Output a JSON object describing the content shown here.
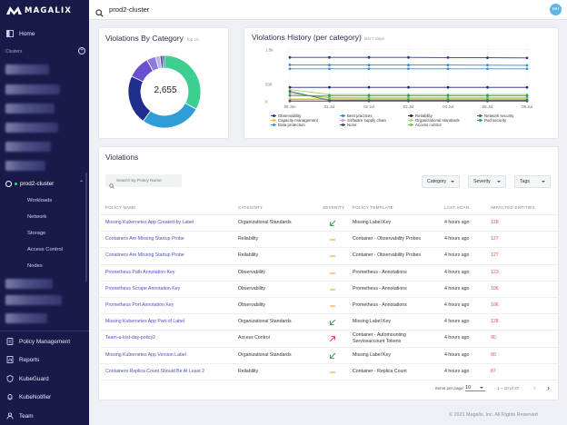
{
  "app": {
    "brand": "MAGALIX",
    "colors": {
      "sidebar": "#191a4a",
      "accent": "#5b53c4",
      "danger": "#e5484d",
      "avatar": "#5eb5e8"
    }
  },
  "sidebar": {
    "home": "Home",
    "clusters_label": "Clusters",
    "add_icon": "plus-circle-icon",
    "active_cluster": "prod2-cluster",
    "cluster_sub": [
      "Workloads",
      "Network",
      "Storage",
      "Access Control",
      "Nodes"
    ],
    "bottom": [
      {
        "label": "Policy Management",
        "icon": "policy-icon"
      },
      {
        "label": "Reports",
        "icon": "reports-icon"
      },
      {
        "label": "KubeGuard",
        "icon": "shield-icon"
      },
      {
        "label": "KubeNotifier",
        "icon": "bell-icon"
      },
      {
        "label": "Team",
        "icon": "team-icon"
      }
    ]
  },
  "topbar": {
    "search_value": "prod2-cluster",
    "avatar": "MH"
  },
  "category_card": {
    "title": "Violations By Category",
    "subtitle": "Top 10",
    "total": "2,655",
    "slices": [
      {
        "value": 33,
        "color": "#3ccf8f"
      },
      {
        "value": 27,
        "color": "#2e9fd6"
      },
      {
        "value": 22,
        "color": "#1f2d8c"
      },
      {
        "value": 10,
        "color": "#6a4fd0"
      },
      {
        "value": 4,
        "color": "#8b7be0"
      },
      {
        "value": 2,
        "color": "#b9b1ec"
      },
      {
        "value": 1.2,
        "color": "#3a4e9e"
      },
      {
        "value": 0.8,
        "color": "#1a1c5a"
      }
    ]
  },
  "history_card": {
    "title": "Violations History (per category)",
    "subtitle": "last 7 days",
    "chart_data": {
      "type": "line",
      "categories": [
        "30 Jun",
        "01 Jul",
        "02 Jul",
        "03 Jul",
        "04 Jul",
        "05 Jul",
        "06 Jul"
      ],
      "ylim": [
        0,
        1600
      ],
      "yticks": [
        "1.5K",
        "500",
        "0"
      ],
      "series": [
        {
          "name": "Observability",
          "color": "#2c3e8c",
          "values": [
            1280,
            1280,
            1280,
            1280,
            1275,
            1270,
            1265
          ]
        },
        {
          "name": "Capacity management",
          "color": "#f0c419",
          "values": [
            80,
            80,
            80,
            80,
            80,
            80,
            80
          ]
        },
        {
          "name": "Data protection",
          "color": "#3c8ed6",
          "values": [
            950,
            950,
            950,
            950,
            950,
            950,
            950
          ]
        },
        {
          "name": "Best practices",
          "color": "#2e86de",
          "values": [
            1065,
            1060,
            1060,
            1060,
            1060,
            1055,
            1050
          ]
        },
        {
          "name": "Software supply chain",
          "color": "#f78fb3",
          "values": [
            60,
            60,
            60,
            60,
            60,
            60,
            60
          ]
        },
        {
          "name": "None",
          "color": "#4a4a4a",
          "values": [
            20,
            20,
            20,
            20,
            20,
            20,
            20
          ]
        },
        {
          "name": "Reliability",
          "color": "#1b2a6e",
          "values": [
            415,
            415,
            415,
            415,
            415,
            415,
            415
          ]
        },
        {
          "name": "Organizational standards",
          "color": "#a6d96a",
          "values": [
            350,
            210,
            210,
            210,
            210,
            210,
            210
          ]
        },
        {
          "name": "Access control",
          "color": "#6cc644",
          "values": [
            240,
            115,
            110,
            110,
            110,
            110,
            110
          ]
        },
        {
          "name": "Network security",
          "color": "#555c66",
          "values": [
            300,
            40,
            40,
            40,
            40,
            40,
            40
          ]
        },
        {
          "name": "Pod security",
          "color": "#16a085",
          "values": [
            175,
            175,
            175,
            175,
            175,
            175,
            175
          ]
        }
      ]
    }
  },
  "violations": {
    "title": "Violations",
    "search_placeholder": "Search by Policy Name",
    "filters": [
      "Category",
      "Severity",
      "Tags"
    ],
    "columns": [
      "Policy Name",
      "Category",
      "Severity",
      "Policy Template",
      "Last Scan",
      "Impacted Entities"
    ],
    "rows": [
      {
        "name": "Missing Kubernetes App Created-by Label",
        "category": "Organizational Standards",
        "severity": "low",
        "template": "Missing Label Key",
        "scan": "4 hours ago",
        "count": "128"
      },
      {
        "name": "Containers Are Missing Startup Probe",
        "category": "Reliability",
        "severity": "medium",
        "template": "Container - Observability Probes",
        "scan": "4 hours ago",
        "count": "127"
      },
      {
        "name": "Conatiners Are Missing Startup Probe",
        "category": "Reliability",
        "severity": "medium",
        "template": "Container - Observability Probes",
        "scan": "4 hours ago",
        "count": "127"
      },
      {
        "name": "Prometheus Path Annotation Key",
        "category": "Observability",
        "severity": "medium",
        "template": "Prometheus - Annotations",
        "scan": "4 hours ago",
        "count": "123"
      },
      {
        "name": "Prometheus Scrape Annotation Key",
        "category": "Observability",
        "severity": "medium",
        "template": "Prometheus - Annotations",
        "scan": "4 hours ago",
        "count": "106"
      },
      {
        "name": "Prometheus Port Annotation Key",
        "category": "Observability",
        "severity": "medium",
        "template": "Prometheus - Annotations",
        "scan": "4 hours ago",
        "count": "106"
      },
      {
        "name": "Missing Kubernetes App Part-of Label",
        "category": "Organizational Standards",
        "severity": "low",
        "template": "Missing Label Key",
        "scan": "4 hours ago",
        "count": "128"
      },
      {
        "name": "Team-a-lost-day-policy2",
        "category": "Access Control",
        "severity": "high",
        "template": "Container - Automounting Serviceaccount Tokens",
        "scan": "4 hours ago",
        "count": "90"
      },
      {
        "name": "Missing Kubernetes App Version Label",
        "category": "Organizational Standards",
        "severity": "low",
        "template": "Missing Label Key",
        "scan": "4 hours ago",
        "count": "90"
      },
      {
        "name": "Containers Replica Count Should Be At Least 2",
        "category": "Reliability",
        "severity": "medium",
        "template": "Container - Replica Count",
        "scan": "4 hours ago",
        "count": "87"
      }
    ],
    "pager": {
      "items_label": "Items per page:",
      "per_page": "10",
      "range": "1 – 10 of 37"
    }
  },
  "footer": "© 2021 Magalix, Inc. All Rights Reserved"
}
